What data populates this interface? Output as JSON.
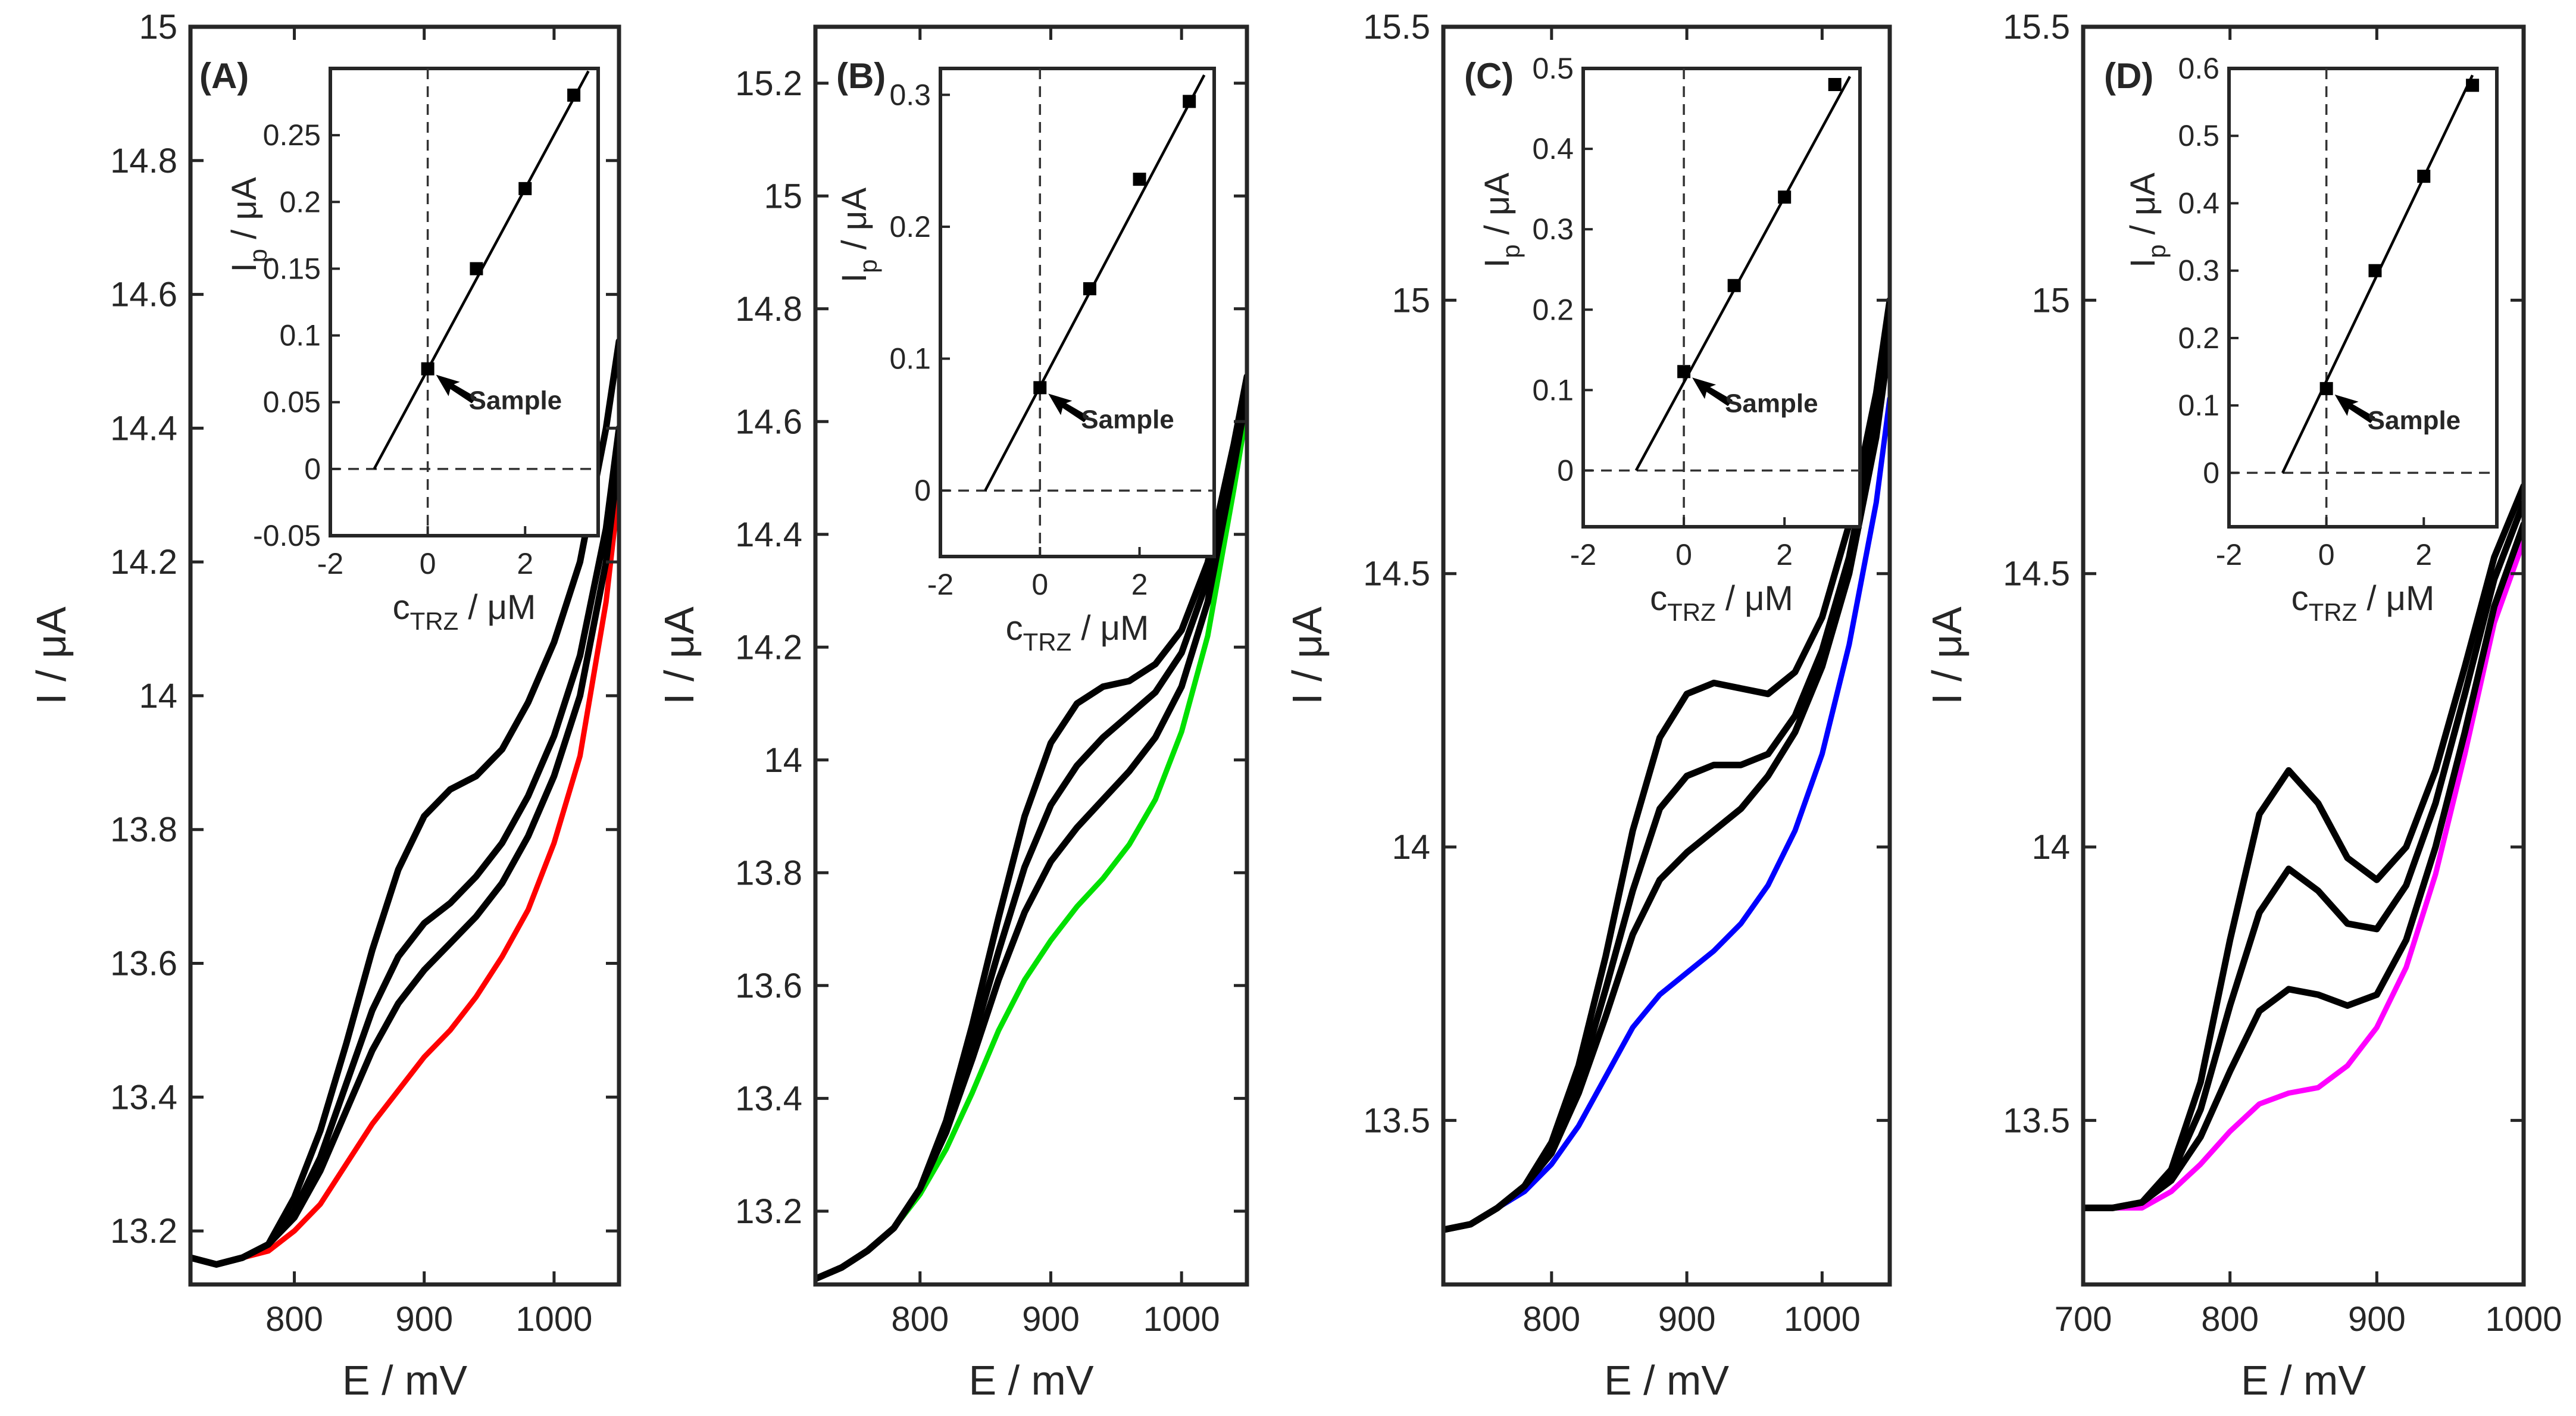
{
  "figure": {
    "xlabel": "E / mV",
    "ylabel": "I / μA",
    "inset_xlabel": "c",
    "inset_xlabel_sub": "TRZ",
    "inset_xlabel_unit": " / μM",
    "inset_ylabel": "I",
    "inset_ylabel_sub": "p",
    "inset_ylabel_unit": " / μA",
    "annotation": "Sample"
  },
  "chart_data": [
    {
      "type": "line",
      "panel_label": "(A)",
      "xlabel": "E / mV",
      "ylabel": "I / μA",
      "xlim": [
        720,
        1050
      ],
      "ylim": [
        13.12,
        15.0
      ],
      "xticks": [
        800,
        900,
        1000
      ],
      "yticks": [
        13.2,
        13.4,
        13.6,
        13.8,
        14.0,
        14.2,
        14.4,
        14.6,
        14.8,
        15.0
      ],
      "ytick_labels": [
        "13.2",
        "13.4",
        "13.6",
        "13.8",
        "14",
        "14.2",
        "14.4",
        "14.6",
        "14.8",
        "15"
      ],
      "sample_color": "#ff0000",
      "series": [
        {
          "x": [
            720,
            740,
            760,
            780,
            800,
            820,
            840,
            860,
            880,
            900,
            920,
            940,
            960,
            980,
            1000,
            1020,
            1040,
            1050
          ],
          "values": [
            13.16,
            13.15,
            13.16,
            13.17,
            13.2,
            13.24,
            13.3,
            13.36,
            13.41,
            13.46,
            13.5,
            13.55,
            13.61,
            13.68,
            13.78,
            13.91,
            14.14,
            14.31
          ]
        },
        {
          "x": [
            720,
            740,
            760,
            780,
            800,
            820,
            840,
            860,
            880,
            900,
            920,
            940,
            960,
            980,
            1000,
            1020,
            1040,
            1050
          ],
          "values": [
            13.16,
            13.15,
            13.16,
            13.18,
            13.22,
            13.29,
            13.38,
            13.47,
            13.54,
            13.59,
            13.63,
            13.67,
            13.72,
            13.79,
            13.88,
            14.0,
            14.2,
            14.36
          ]
        },
        {
          "x": [
            720,
            740,
            760,
            780,
            800,
            820,
            840,
            860,
            880,
            900,
            920,
            940,
            960,
            980,
            1000,
            1020,
            1040,
            1050
          ],
          "values": [
            13.16,
            13.15,
            13.16,
            13.18,
            13.23,
            13.31,
            13.42,
            13.53,
            13.61,
            13.66,
            13.69,
            13.73,
            13.78,
            13.85,
            13.94,
            14.06,
            14.25,
            14.4
          ]
        },
        {
          "x": [
            720,
            740,
            760,
            780,
            800,
            820,
            840,
            860,
            880,
            900,
            920,
            940,
            960,
            980,
            1000,
            1020,
            1040,
            1050
          ],
          "values": [
            13.16,
            13.15,
            13.16,
            13.18,
            13.25,
            13.35,
            13.48,
            13.62,
            13.74,
            13.82,
            13.86,
            13.88,
            13.92,
            13.99,
            14.08,
            14.2,
            14.4,
            14.53
          ]
        }
      ],
      "inset": {
        "xlim": [
          -2,
          3.5
        ],
        "ylim": [
          -0.05,
          0.3
        ],
        "xticks": [
          -2,
          0,
          2
        ],
        "yticks": [
          -0.05,
          0,
          0.05,
          0.1,
          0.15,
          0.2,
          0.25
        ],
        "ytick_labels": [
          "-0.05",
          "0",
          "0.05",
          "0.1",
          "0.15",
          "0.2",
          "0.25"
        ],
        "points": {
          "x": [
            0,
            1,
            2,
            3
          ],
          "y": [
            0.075,
            0.15,
            0.21,
            0.28
          ]
        },
        "fit": {
          "x": [
            -1.1,
            3.3
          ],
          "y": [
            0.0,
            0.298
          ]
        }
      }
    },
    {
      "type": "line",
      "panel_label": "(B)",
      "xlabel": "E / mV",
      "ylabel": "I / μA",
      "xlim": [
        720,
        1050
      ],
      "ylim": [
        13.07,
        15.3
      ],
      "xticks": [
        800,
        900,
        1000
      ],
      "yticks": [
        13.2,
        13.4,
        13.6,
        13.8,
        14.0,
        14.2,
        14.4,
        14.6,
        14.8,
        15.0,
        15.2
      ],
      "ytick_labels": [
        "13.2",
        "13.4",
        "13.6",
        "13.8",
        "14",
        "14.2",
        "14.4",
        "14.6",
        "14.8",
        "15",
        "15.2"
      ],
      "sample_color": "#00e000",
      "series": [
        {
          "x": [
            720,
            740,
            760,
            780,
            800,
            820,
            840,
            860,
            880,
            900,
            920,
            940,
            960,
            980,
            1000,
            1020,
            1040,
            1050
          ],
          "values": [
            13.08,
            13.1,
            13.13,
            13.17,
            13.23,
            13.31,
            13.41,
            13.52,
            13.61,
            13.68,
            13.74,
            13.79,
            13.85,
            13.93,
            14.05,
            14.22,
            14.48,
            14.62
          ]
        },
        {
          "x": [
            720,
            740,
            760,
            780,
            800,
            820,
            840,
            860,
            880,
            900,
            920,
            940,
            960,
            980,
            1000,
            1020,
            1040,
            1050
          ],
          "values": [
            13.08,
            13.1,
            13.13,
            13.17,
            13.24,
            13.34,
            13.47,
            13.61,
            13.73,
            13.82,
            13.88,
            13.93,
            13.98,
            14.04,
            14.13,
            14.28,
            14.52,
            14.65
          ]
        },
        {
          "x": [
            720,
            740,
            760,
            780,
            800,
            820,
            840,
            860,
            880,
            900,
            920,
            940,
            960,
            980,
            1000,
            1020,
            1040,
            1050
          ],
          "values": [
            13.08,
            13.1,
            13.13,
            13.17,
            13.24,
            13.35,
            13.5,
            13.66,
            13.81,
            13.92,
            13.99,
            14.04,
            14.08,
            14.12,
            14.19,
            14.32,
            14.54,
            14.67
          ]
        },
        {
          "x": [
            720,
            740,
            760,
            780,
            800,
            820,
            840,
            860,
            880,
            900,
            920,
            940,
            960,
            980,
            1000,
            1020,
            1040,
            1050
          ],
          "values": [
            13.08,
            13.1,
            13.13,
            13.17,
            13.24,
            13.36,
            13.53,
            13.72,
            13.9,
            14.03,
            14.1,
            14.13,
            14.14,
            14.17,
            14.23,
            14.35,
            14.56,
            14.68
          ]
        }
      ],
      "inset": {
        "xlim": [
          -2,
          3.5
        ],
        "ylim": [
          -0.05,
          0.32
        ],
        "xticks": [
          -2,
          0,
          2
        ],
        "yticks": [
          0,
          0.1,
          0.2,
          0.3
        ],
        "ytick_labels": [
          "0",
          "0.1",
          "0.2",
          "0.3"
        ],
        "points": {
          "x": [
            0,
            1,
            2,
            3
          ],
          "y": [
            0.078,
            0.153,
            0.236,
            0.295
          ]
        },
        "fit": {
          "x": [
            -1.1,
            3.3
          ],
          "y": [
            0.0,
            0.315
          ]
        }
      }
    },
    {
      "type": "line",
      "panel_label": "(C)",
      "xlabel": "E / mV",
      "ylabel": "I / μA",
      "xlim": [
        720,
        1050
      ],
      "ylim": [
        13.2,
        15.5
      ],
      "xticks": [
        800,
        900,
        1000
      ],
      "yticks": [
        13.5,
        14.0,
        14.5,
        15.0,
        15.5
      ],
      "ytick_labels": [
        "13.5",
        "14",
        "14.5",
        "15",
        "15.5"
      ],
      "sample_color": "#0000ff",
      "series": [
        {
          "x": [
            720,
            740,
            760,
            780,
            800,
            820,
            840,
            860,
            880,
            900,
            920,
            940,
            960,
            980,
            1000,
            1020,
            1040,
            1050
          ],
          "values": [
            13.3,
            13.31,
            13.34,
            13.37,
            13.42,
            13.49,
            13.58,
            13.67,
            13.73,
            13.77,
            13.81,
            13.86,
            13.93,
            14.03,
            14.17,
            14.37,
            14.63,
            14.82
          ]
        },
        {
          "x": [
            720,
            740,
            760,
            780,
            800,
            820,
            840,
            860,
            880,
            900,
            920,
            940,
            960,
            980,
            1000,
            1020,
            1040,
            1050
          ],
          "values": [
            13.3,
            13.31,
            13.34,
            13.38,
            13.44,
            13.55,
            13.69,
            13.84,
            13.94,
            13.99,
            14.03,
            14.07,
            14.13,
            14.21,
            14.33,
            14.5,
            14.75,
            14.93
          ]
        },
        {
          "x": [
            720,
            740,
            760,
            780,
            800,
            820,
            840,
            860,
            880,
            900,
            920,
            940,
            960,
            980,
            1000,
            1020,
            1040,
            1050
          ],
          "values": [
            13.3,
            13.31,
            13.34,
            13.38,
            13.45,
            13.57,
            13.74,
            13.92,
            14.07,
            14.13,
            14.15,
            14.15,
            14.17,
            14.24,
            14.36,
            14.53,
            14.78,
            14.96
          ]
        },
        {
          "x": [
            720,
            740,
            760,
            780,
            800,
            820,
            840,
            860,
            880,
            900,
            920,
            940,
            960,
            980,
            1000,
            1020,
            1040,
            1050
          ],
          "values": [
            13.3,
            13.31,
            13.34,
            13.38,
            13.46,
            13.6,
            13.8,
            14.03,
            14.2,
            14.28,
            14.3,
            14.29,
            14.28,
            14.32,
            14.42,
            14.59,
            14.83,
            15.0
          ]
        }
      ],
      "inset": {
        "xlim": [
          -2,
          3.5
        ],
        "ylim": [
          -0.07,
          0.5
        ],
        "xticks": [
          -2,
          0,
          2
        ],
        "yticks": [
          0,
          0.1,
          0.2,
          0.3,
          0.4,
          0.5
        ],
        "ytick_labels": [
          "0",
          "0.1",
          "0.2",
          "0.3",
          "0.4",
          "0.5"
        ],
        "points": {
          "x": [
            0,
            1,
            2,
            3
          ],
          "y": [
            0.123,
            0.23,
            0.34,
            0.48
          ]
        },
        "fit": {
          "x": [
            -0.95,
            3.3
          ],
          "y": [
            0.0,
            0.49
          ]
        }
      }
    },
    {
      "type": "line",
      "panel_label": "(D)",
      "xlabel": "E / mV",
      "ylabel": "I / μA",
      "xlim": [
        700,
        1000
      ],
      "ylim": [
        13.2,
        15.5
      ],
      "xticks": [
        700,
        800,
        900,
        1000
      ],
      "yticks": [
        13.5,
        14.0,
        14.5,
        15.0,
        15.5
      ],
      "ytick_labels": [
        "13.5",
        "14",
        "14.5",
        "15",
        "15.5"
      ],
      "sample_color": "#ff00ff",
      "series": [
        {
          "x": [
            700,
            720,
            740,
            760,
            780,
            800,
            820,
            840,
            860,
            880,
            900,
            920,
            940,
            960,
            980,
            1000
          ],
          "values": [
            13.34,
            13.34,
            13.34,
            13.37,
            13.42,
            13.48,
            13.53,
            13.55,
            13.56,
            13.6,
            13.67,
            13.78,
            13.95,
            14.17,
            14.41,
            14.56
          ]
        },
        {
          "x": [
            700,
            720,
            740,
            760,
            780,
            800,
            820,
            840,
            860,
            880,
            900,
            920,
            940,
            960,
            980,
            1000
          ],
          "values": [
            13.34,
            13.34,
            13.35,
            13.39,
            13.47,
            13.59,
            13.7,
            13.74,
            13.73,
            13.71,
            13.73,
            13.83,
            14.0,
            14.21,
            14.44,
            14.59
          ]
        },
        {
          "x": [
            700,
            720,
            740,
            760,
            780,
            800,
            820,
            840,
            860,
            880,
            900,
            920,
            940,
            960,
            980,
            1000
          ],
          "values": [
            13.34,
            13.34,
            13.35,
            13.4,
            13.52,
            13.71,
            13.88,
            13.96,
            13.92,
            13.86,
            13.85,
            13.93,
            14.08,
            14.28,
            14.49,
            14.63
          ]
        },
        {
          "x": [
            700,
            720,
            740,
            760,
            780,
            800,
            820,
            840,
            860,
            880,
            900,
            920,
            940,
            960,
            980,
            1000
          ],
          "values": [
            13.34,
            13.34,
            13.35,
            13.41,
            13.57,
            13.83,
            14.06,
            14.14,
            14.08,
            13.98,
            13.94,
            14.0,
            14.14,
            14.33,
            14.53,
            14.66
          ]
        }
      ],
      "inset": {
        "xlim": [
          -2,
          3.5
        ],
        "ylim": [
          -0.08,
          0.6
        ],
        "xticks": [
          -2,
          0,
          2
        ],
        "yticks": [
          0,
          0.1,
          0.2,
          0.3,
          0.4,
          0.5,
          0.6
        ],
        "ytick_labels": [
          "0",
          "0.1",
          "0.2",
          "0.3",
          "0.4",
          "0.5",
          "0.6"
        ],
        "points": {
          "x": [
            0,
            1,
            2,
            3
          ],
          "y": [
            0.125,
            0.3,
            0.44,
            0.575
          ]
        },
        "fit": {
          "x": [
            -0.9,
            3.0
          ],
          "y": [
            0.0,
            0.59
          ]
        }
      }
    }
  ]
}
